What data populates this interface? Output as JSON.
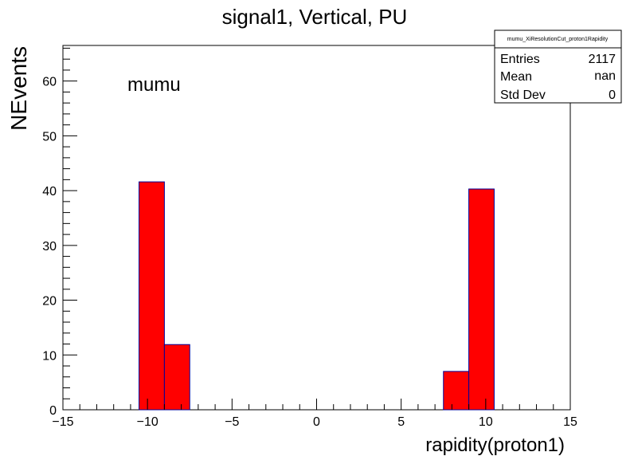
{
  "chart_data": {
    "type": "bar",
    "title": "signal1, Vertical, PU",
    "xlabel": "rapidity(proton1)",
    "ylabel": "NEvents",
    "annotation": "mumu",
    "xlim": [
      -15,
      15
    ],
    "ylim": [
      0,
      66.5
    ],
    "x_ticks": [
      -15,
      -10,
      -5,
      0,
      5,
      10,
      15
    ],
    "y_ticks": [
      0,
      10,
      20,
      30,
      40,
      50,
      60
    ],
    "bin_width": 1.5,
    "bins": [
      {
        "x_low": -10.5,
        "x_high": -9.0,
        "value": 41.6
      },
      {
        "x_low": -9.0,
        "x_high": -7.5,
        "value": 11.9
      },
      {
        "x_low": 7.5,
        "x_high": 9.0,
        "value": 7.0
      },
      {
        "x_low": 9.0,
        "x_high": 10.5,
        "value": 40.3
      }
    ],
    "fill_color": "#ff0000",
    "line_color": "#000099",
    "stats_box": {
      "name": "mumu_XiResolutionCut_proton1Rapidity",
      "rows": [
        {
          "label": "Entries",
          "value": "2117"
        },
        {
          "label": "Mean",
          "value": "nan"
        },
        {
          "label": "Std Dev",
          "value": "0"
        }
      ]
    }
  }
}
